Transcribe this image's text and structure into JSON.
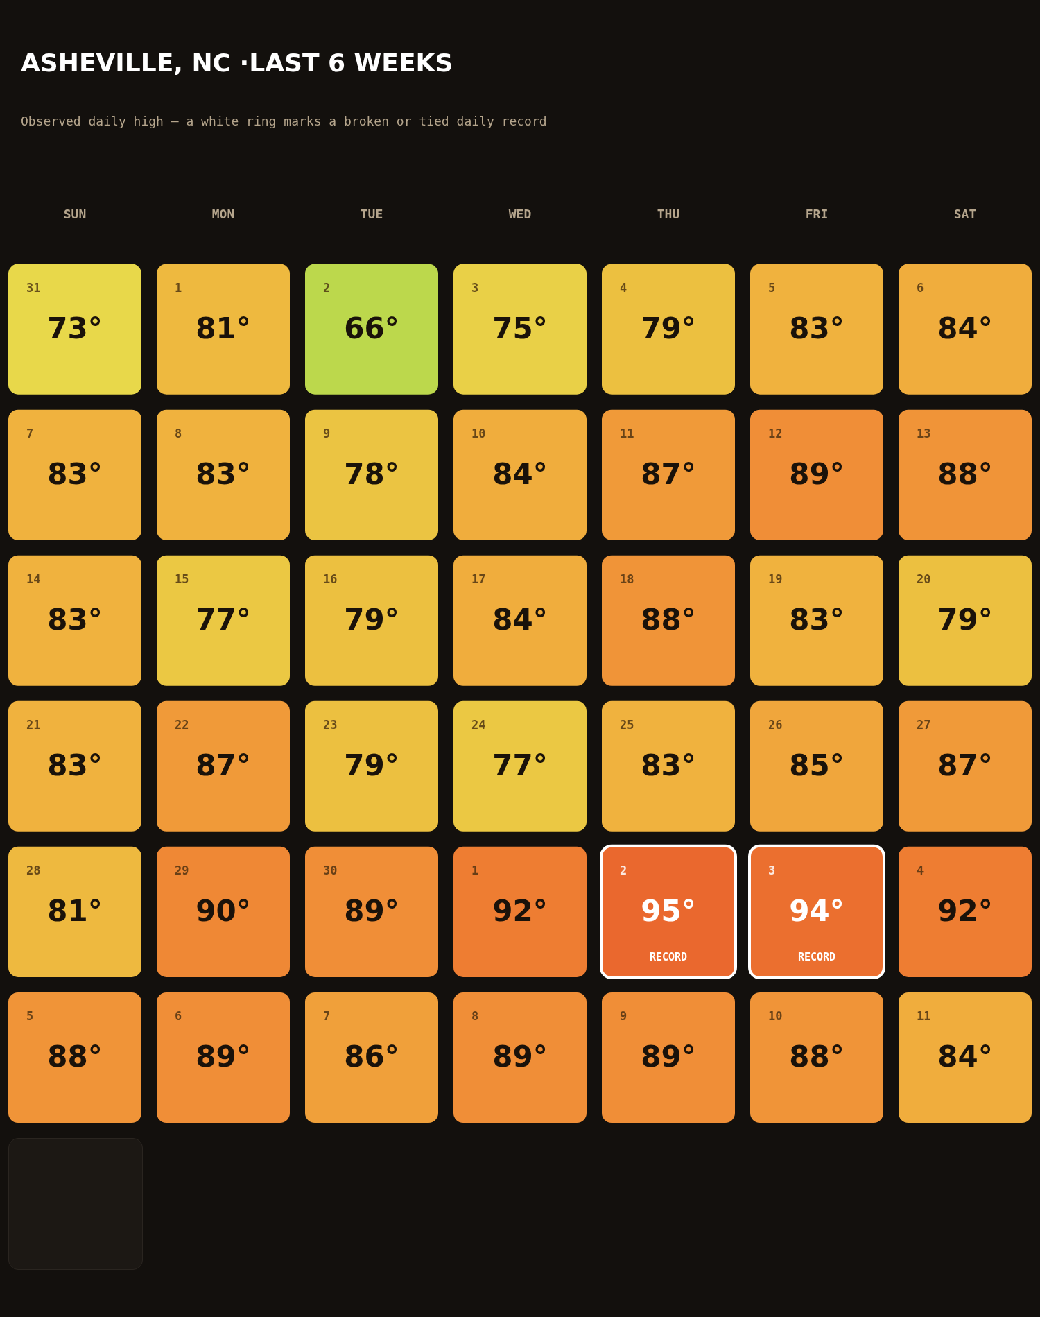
{
  "chart_data": {
    "type": "heatmap",
    "title": "ASHEVILLE, NC ·LAST 6 WEEKS",
    "subtitle": "Observed daily high — a white ring marks a broken or tied daily record",
    "categories": [
      "SUN",
      "MON",
      "TUE",
      "WED",
      "THU",
      "FRI",
      "SAT"
    ],
    "y_categories": [
      null,
      null,
      null,
      null,
      null,
      null
    ],
    "cells": [
      [
        73,
        81,
        66,
        75,
        79,
        83,
        84
      ],
      [
        83,
        83,
        78,
        84,
        87,
        89,
        88
      ],
      [
        83,
        77,
        79,
        84,
        88,
        83,
        79
      ],
      [
        83,
        87,
        79,
        77,
        83,
        85,
        87
      ],
      [
        81,
        90,
        89,
        92,
        95,
        94,
        92
      ],
      [
        88,
        89,
        86,
        89,
        89,
        88,
        84
      ]
    ],
    "cell_labels": [
      [
        "73°",
        "81°",
        "66°",
        "75°",
        "79°",
        "83°",
        "84°"
      ],
      [
        "83°",
        "83°",
        "78°",
        "84°",
        "87°",
        "89°",
        "88°"
      ],
      [
        "83°",
        "77°",
        "79°",
        "84°",
        "88°",
        "83°",
        "79°"
      ],
      [
        "83°",
        "87°",
        "79°",
        "77°",
        "83°",
        "85°",
        "87°"
      ],
      [
        "81°",
        "90°",
        "89°",
        "92°",
        "95°\nRECORD",
        "94°\nRECORD",
        "92°"
      ],
      [
        "88°",
        "89°",
        "86°",
        "89°",
        "89°",
        "88°",
        "84°"
      ]
    ],
    "annotations": [
      "31",
      "1",
      "2",
      "3",
      "4",
      "5",
      "6",
      "7",
      "8",
      "9",
      "10",
      "11",
      "12",
      "13",
      "14",
      "15",
      "16",
      "17",
      "18",
      "19",
      "20",
      "21",
      "22",
      "23",
      "24",
      "25",
      "26",
      "27",
      "28",
      "29",
      "30",
      "1",
      "2",
      "3",
      "4",
      "5",
      "6",
      "7",
      "8",
      "9",
      "10",
      "11"
    ]
  }
}
